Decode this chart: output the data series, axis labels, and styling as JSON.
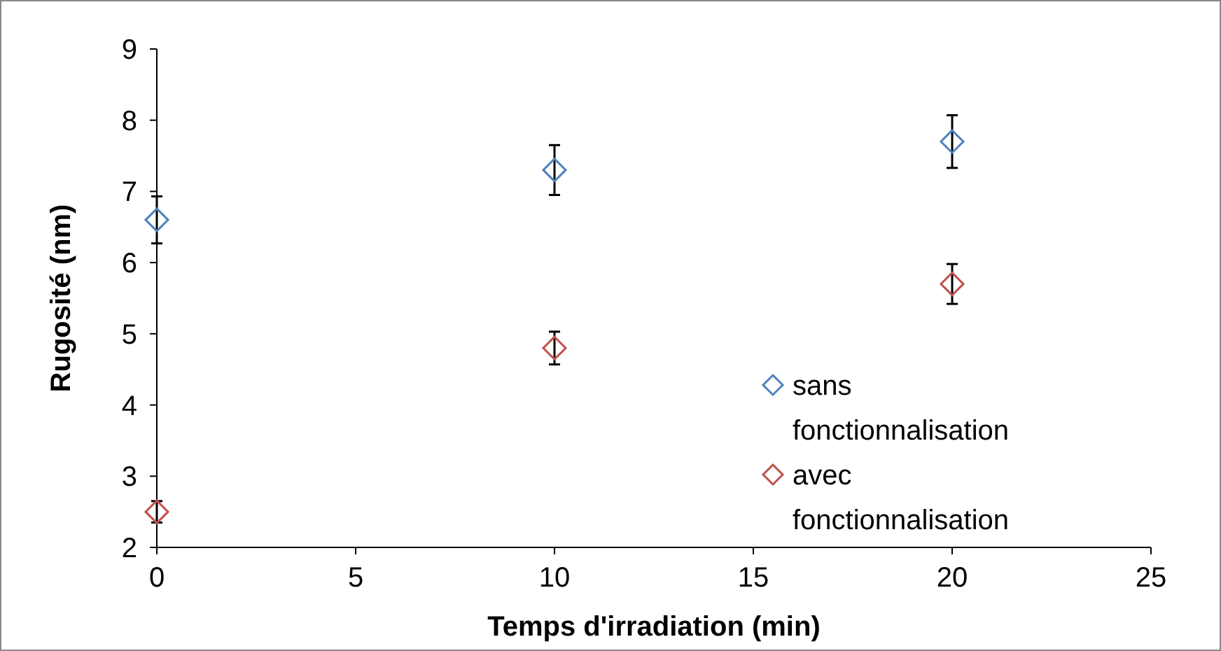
{
  "chart_data": {
    "type": "scatter",
    "xlabel": "Temps d'irradiation (min)",
    "ylabel": "Rugosité (nm)",
    "xlim": [
      0,
      25
    ],
    "xticks": [
      0,
      5,
      10,
      15,
      20,
      25
    ],
    "ylim": [
      2,
      9
    ],
    "yticks": [
      2,
      3,
      4,
      5,
      6,
      7,
      8,
      9
    ],
    "grid": false,
    "legend": "right",
    "marker": "diamond",
    "series": [
      {
        "name": "sans fonctionnalisation",
        "color": "#4f81bd",
        "x": [
          0,
          10,
          20
        ],
        "values": [
          6.6,
          7.3,
          7.7
        ],
        "errors": [
          0.33,
          0.35,
          0.37
        ]
      },
      {
        "name": "avec fonctionnalisation",
        "color": "#c0504d",
        "x": [
          0,
          10,
          20
        ],
        "values": [
          2.5,
          4.8,
          5.7
        ],
        "errors": [
          0.15,
          0.23,
          0.28
        ]
      }
    ]
  }
}
